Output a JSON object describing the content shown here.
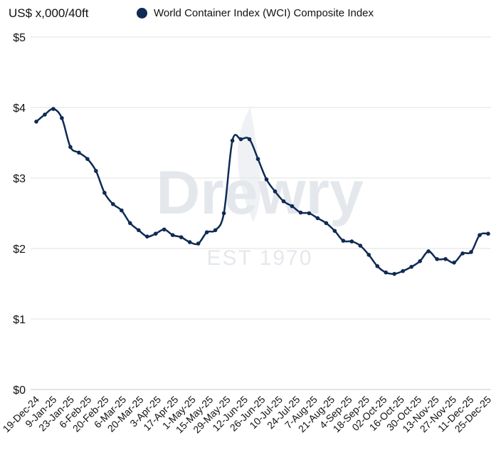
{
  "chart_data": {
    "type": "line",
    "unit_label": "US$ x,000/40ft",
    "watermark": {
      "brand": "Drewry",
      "tagline": "EST 1970"
    },
    "series": [
      {
        "name": "World Container Index (WCI) Composite Index",
        "color": "#0f2a54"
      }
    ],
    "ylim": [
      0,
      5
    ],
    "yticks": [
      {
        "value": 0,
        "label": "$0"
      },
      {
        "value": 1,
        "label": "$1"
      },
      {
        "value": 2,
        "label": "$2"
      },
      {
        "value": 3,
        "label": "$3"
      },
      {
        "value": 4,
        "label": "$4"
      },
      {
        "value": 5,
        "label": "$5"
      }
    ],
    "grid": true,
    "legend_position": "top",
    "xtick_labels": [
      "19-Dec-24",
      "9-Jan-25",
      "23-Jan-25",
      "6-Feb-25",
      "20-Feb-25",
      "6-Mar-25",
      "20-Mar-25",
      "3-Apr-25",
      "17-Apr-25",
      "1-May-25",
      "15-May-25",
      "29-May-25",
      "12-Jun-25",
      "26-Jun-25",
      "10-Jul-25",
      "24-Jul-25",
      "7-Aug-25",
      "21-Aug-25",
      "4-Sep-25",
      "18-Sep-25",
      "02-Oct-25",
      "16-Oct-25",
      "30-Oct-25",
      "13-Nov-25",
      "27-Nov-25",
      "11-Dec-25",
      "25-Dec-25"
    ],
    "values": [
      3.8,
      3.9,
      3.98,
      3.85,
      3.44,
      3.36,
      3.27,
      3.1,
      2.79,
      2.63,
      2.54,
      2.36,
      2.26,
      2.17,
      2.21,
      2.27,
      2.19,
      2.16,
      2.09,
      2.07,
      2.23,
      2.26,
      2.5,
      3.53,
      3.55,
      3.55,
      3.27,
      2.98,
      2.81,
      2.67,
      2.6,
      2.51,
      2.5,
      2.43,
      2.36,
      2.25,
      2.11,
      2.1,
      2.04,
      1.91,
      1.75,
      1.66,
      1.64,
      1.68,
      1.74,
      1.82,
      1.96,
      1.85,
      1.85,
      1.8,
      1.93,
      1.95,
      2.19,
      2.21
    ]
  }
}
